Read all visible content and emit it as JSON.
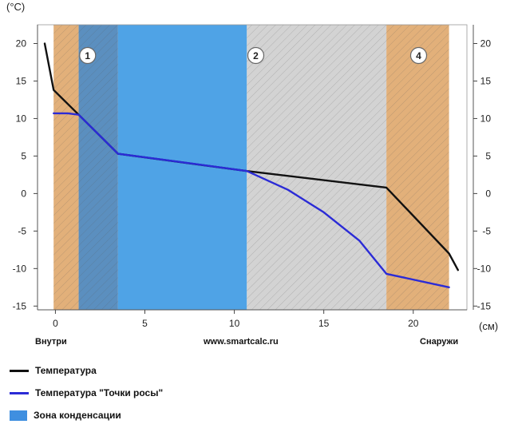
{
  "chart_data": {
    "type": "line",
    "ylabel": "(°C)",
    "xlabel": "(см)",
    "xlim": [
      -1,
      23
    ],
    "ylim": [
      -15.5,
      22.5
    ],
    "x_ticks": [
      0,
      5,
      10,
      15,
      20
    ],
    "y_ticks": [
      20,
      15,
      10,
      5,
      0,
      -5,
      -10,
      -15
    ],
    "left_label": "Внутри",
    "center_label": "www.smartcalc.ru",
    "right_label": "Снаружи",
    "layers": [
      {
        "from": -0.1,
        "to": 1.3,
        "color": "#E2B07A",
        "hatched": true
      },
      {
        "from": 1.3,
        "to": 3.5,
        "color": "#5B8FBF",
        "hatched": true
      },
      {
        "from": 3.5,
        "to": 10.7,
        "color": "#4FA3E6",
        "hatched": false
      },
      {
        "from": 10.7,
        "to": 18.5,
        "color": "#D3D3D3",
        "hatched": true
      },
      {
        "from": 18.5,
        "to": 22.0,
        "color": "#E2B07A",
        "hatched": true
      }
    ],
    "layer_markers": [
      {
        "label": "1",
        "x": 1.8,
        "y": 18.4
      },
      {
        "label": "2",
        "x": 11.2,
        "y": 18.4
      },
      {
        "label": "4",
        "x": 20.3,
        "y": 18.4
      }
    ],
    "series": [
      {
        "name": "Температура",
        "color": "#111111",
        "x": [
          -0.6,
          -0.1,
          1.3,
          3.5,
          10.7,
          18.5,
          22.0,
          22.5
        ],
        "y": [
          20,
          13.8,
          10.5,
          5.3,
          3.0,
          0.8,
          -8.0,
          -10.2
        ]
      },
      {
        "name": "Температура \"Точки росы\"",
        "color": "#2B2BD6",
        "x": [
          -0.1,
          0.7,
          1.3,
          3.5,
          7.0,
          10.7,
          13.0,
          15.0,
          17.0,
          18.5,
          22.0
        ],
        "y": [
          10.7,
          10.7,
          10.5,
          5.3,
          4.2,
          3.0,
          0.5,
          -2.5,
          -6.3,
          -10.7,
          -12.5
        ]
      }
    ],
    "legend": [
      {
        "label": "Температура",
        "kind": "line",
        "color": "#111111"
      },
      {
        "label": "Температура \"Точки росы\"",
        "kind": "line",
        "color": "#2B2BD6"
      },
      {
        "label": "Зона конденсации",
        "kind": "box",
        "color": "#3F8FE0"
      }
    ]
  }
}
